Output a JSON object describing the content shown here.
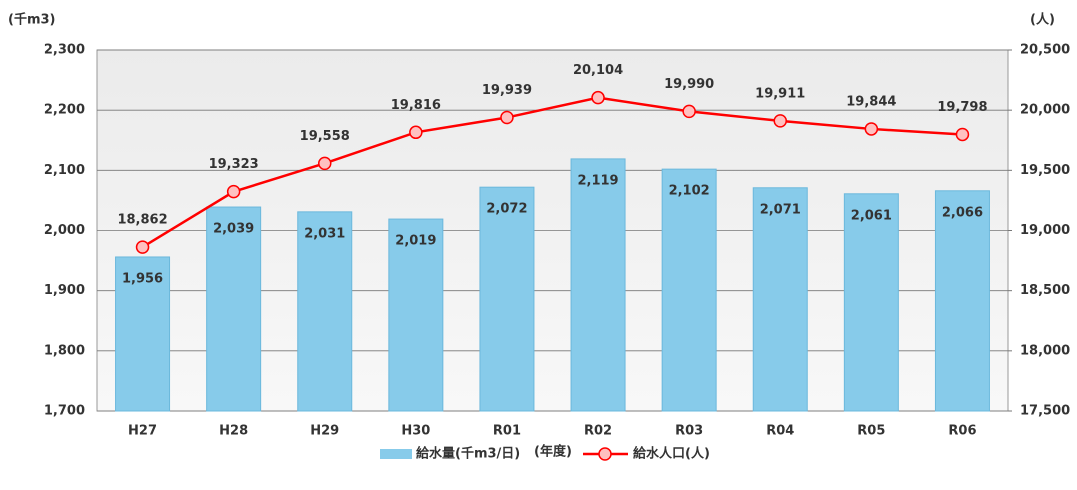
{
  "chart_data": {
    "type": "bar",
    "y_axis_label": "(千m3)",
    "y2_axis_label": "(人)",
    "x_axis_label": "(年度)",
    "categories": [
      "H27",
      "H28",
      "H29",
      "H30",
      "R01",
      "R02",
      "R03",
      "R04",
      "R05",
      "R06"
    ],
    "series": [
      {
        "name": "給水量(千m3/日)",
        "type": "bar",
        "color": "#87cbea",
        "values": [
          1956,
          2039,
          2031,
          2019,
          2072,
          2119,
          2102,
          2071,
          2061,
          2066
        ],
        "value_labels": [
          "1,956",
          "2,039",
          "2,031",
          "2,019",
          "2,072",
          "2,119",
          "2,102",
          "2,071",
          "2,061",
          "2,066"
        ]
      },
      {
        "name": "給水人口(人)",
        "type": "line",
        "axis": "y2",
        "color": "#ff0000",
        "values": [
          18862,
          19323,
          19558,
          19816,
          19939,
          20104,
          19990,
          19911,
          19844,
          19798
        ],
        "value_labels": [
          "18,862",
          "19,323",
          "19,558",
          "19,816",
          "19,939",
          "20,104",
          "19,990",
          "19,911",
          "19,844",
          "19,798"
        ]
      }
    ],
    "ylim": [
      1700,
      2300
    ],
    "yticks": [
      {
        "value": 1700,
        "label": "1,700"
      },
      {
        "value": 1800,
        "label": "1,800"
      },
      {
        "value": 1900,
        "label": "1,900"
      },
      {
        "value": 2000,
        "label": "2,000"
      },
      {
        "value": 2100,
        "label": "2,100"
      },
      {
        "value": 2200,
        "label": "2,200"
      },
      {
        "value": 2300,
        "label": "2,300"
      }
    ],
    "y2lim": [
      17500,
      20500
    ],
    "y2ticks": [
      {
        "value": 17500,
        "label": "17,500"
      },
      {
        "value": 18000,
        "label": "18,000"
      },
      {
        "value": 18500,
        "label": "18,500"
      },
      {
        "value": 19000,
        "label": "19,000"
      },
      {
        "value": 19500,
        "label": "19,500"
      },
      {
        "value": 20000,
        "label": "20,000"
      },
      {
        "value": 20500,
        "label": "20,500"
      }
    ],
    "grid": true,
    "legend": "bottom"
  }
}
